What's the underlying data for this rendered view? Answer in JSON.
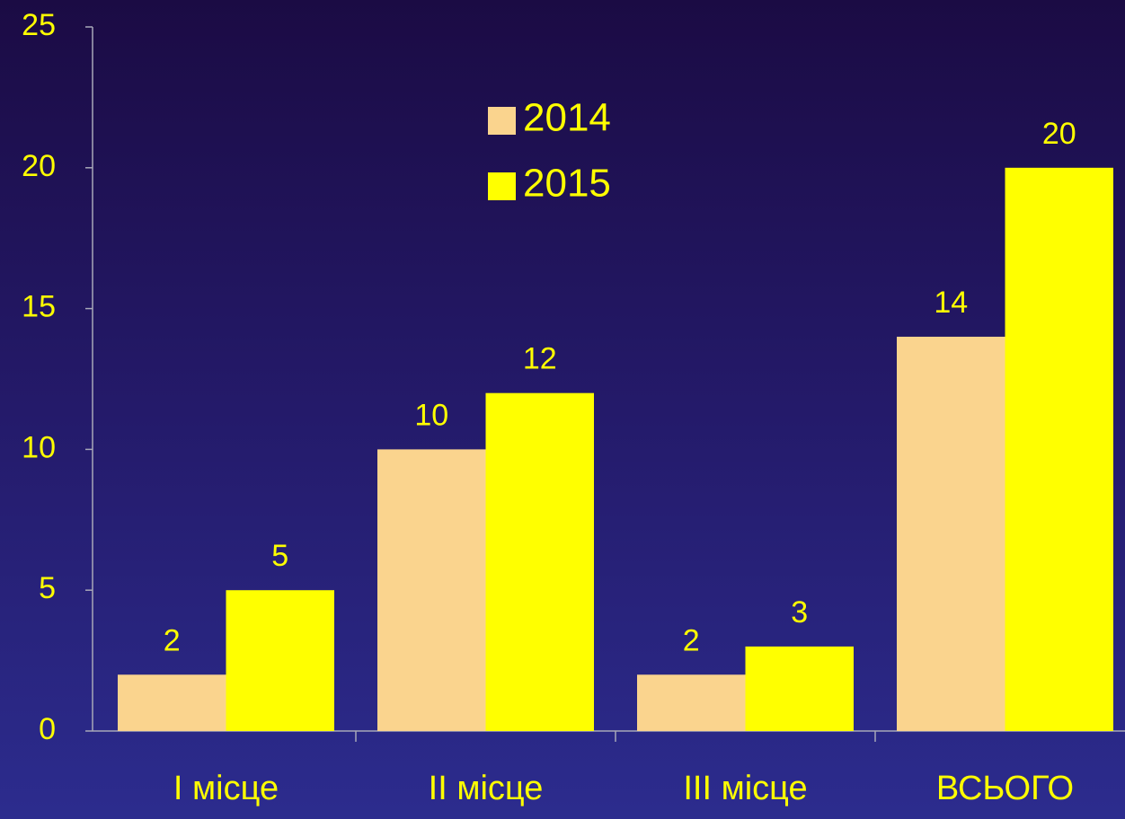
{
  "chart_data": {
    "type": "bar",
    "categories": [
      "І місце",
      "ІІ місце",
      "ІІІ місце",
      "ВСЬОГО"
    ],
    "series": [
      {
        "name": "2014",
        "color": "#fad48e",
        "values": [
          2,
          10,
          2,
          14
        ]
      },
      {
        "name": "2015",
        "color": "#ffff00",
        "values": [
          5,
          12,
          3,
          20
        ]
      }
    ],
    "ylim": [
      0,
      25
    ],
    "yticks": [
      0,
      5,
      10,
      15,
      20,
      25
    ],
    "grid": false,
    "legend": "top"
  }
}
